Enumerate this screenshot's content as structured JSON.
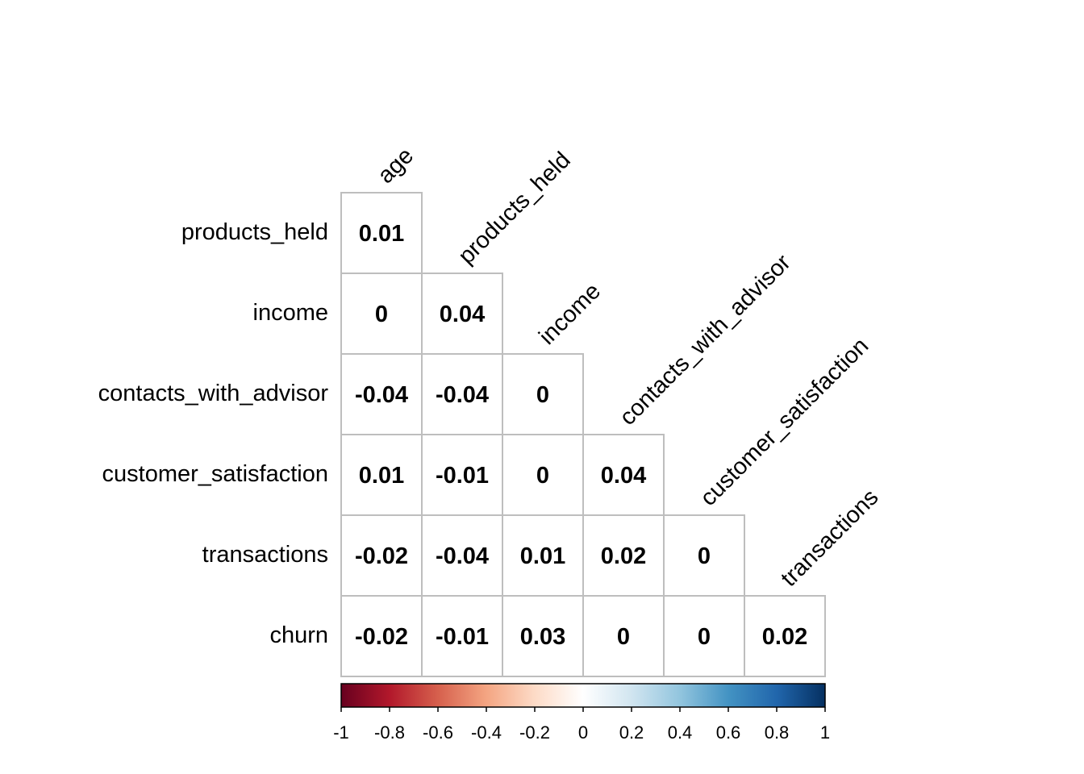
{
  "chart_data": {
    "type": "heatmap",
    "layout": "lower-triangle",
    "column_variables": [
      "age",
      "products_held",
      "income",
      "contacts_with_advisor",
      "customer_satisfaction",
      "transactions"
    ],
    "row_variables": [
      "products_held",
      "income",
      "contacts_with_advisor",
      "customer_satisfaction",
      "transactions",
      "churn"
    ],
    "values": [
      [
        0.01
      ],
      [
        0,
        0.04
      ],
      [
        -0.04,
        -0.04,
        0
      ],
      [
        0.01,
        -0.01,
        0,
        0.04
      ],
      [
        -0.02,
        -0.04,
        0.01,
        0.02,
        0
      ],
      [
        -0.02,
        -0.01,
        0.03,
        0,
        0,
        0.02
      ]
    ],
    "value_labels": [
      [
        "0.01"
      ],
      [
        "0",
        "0.04"
      ],
      [
        "-0.04",
        "-0.04",
        "0"
      ],
      [
        "0.01",
        "-0.01",
        "0",
        "0.04"
      ],
      [
        "-0.02",
        "-0.04",
        "0.01",
        "0.02",
        "0"
      ],
      [
        "-0.02",
        "-0.01",
        "0.03",
        "0",
        "0",
        "0.02"
      ]
    ],
    "colorbar": {
      "range": [
        -1,
        1
      ],
      "ticks": [
        -1,
        -0.8,
        -0.6,
        -0.4,
        -0.2,
        0,
        0.2,
        0.4,
        0.6,
        0.8,
        1
      ],
      "tick_labels": [
        "-1",
        "-0.8",
        "-0.6",
        "-0.4",
        "-0.2",
        "0",
        "0.2",
        "0.4",
        "0.6",
        "0.8",
        "1"
      ],
      "colors": [
        "#67001F",
        "#B2182B",
        "#D6604D",
        "#F4A582",
        "#FDDBC7",
        "#FFFFFF",
        "#D1E5F0",
        "#92C5DE",
        "#4393C3",
        "#2166AC",
        "#053061"
      ],
      "placement": "bottom"
    },
    "grid": true,
    "grid_color": "#BEBEBE"
  }
}
